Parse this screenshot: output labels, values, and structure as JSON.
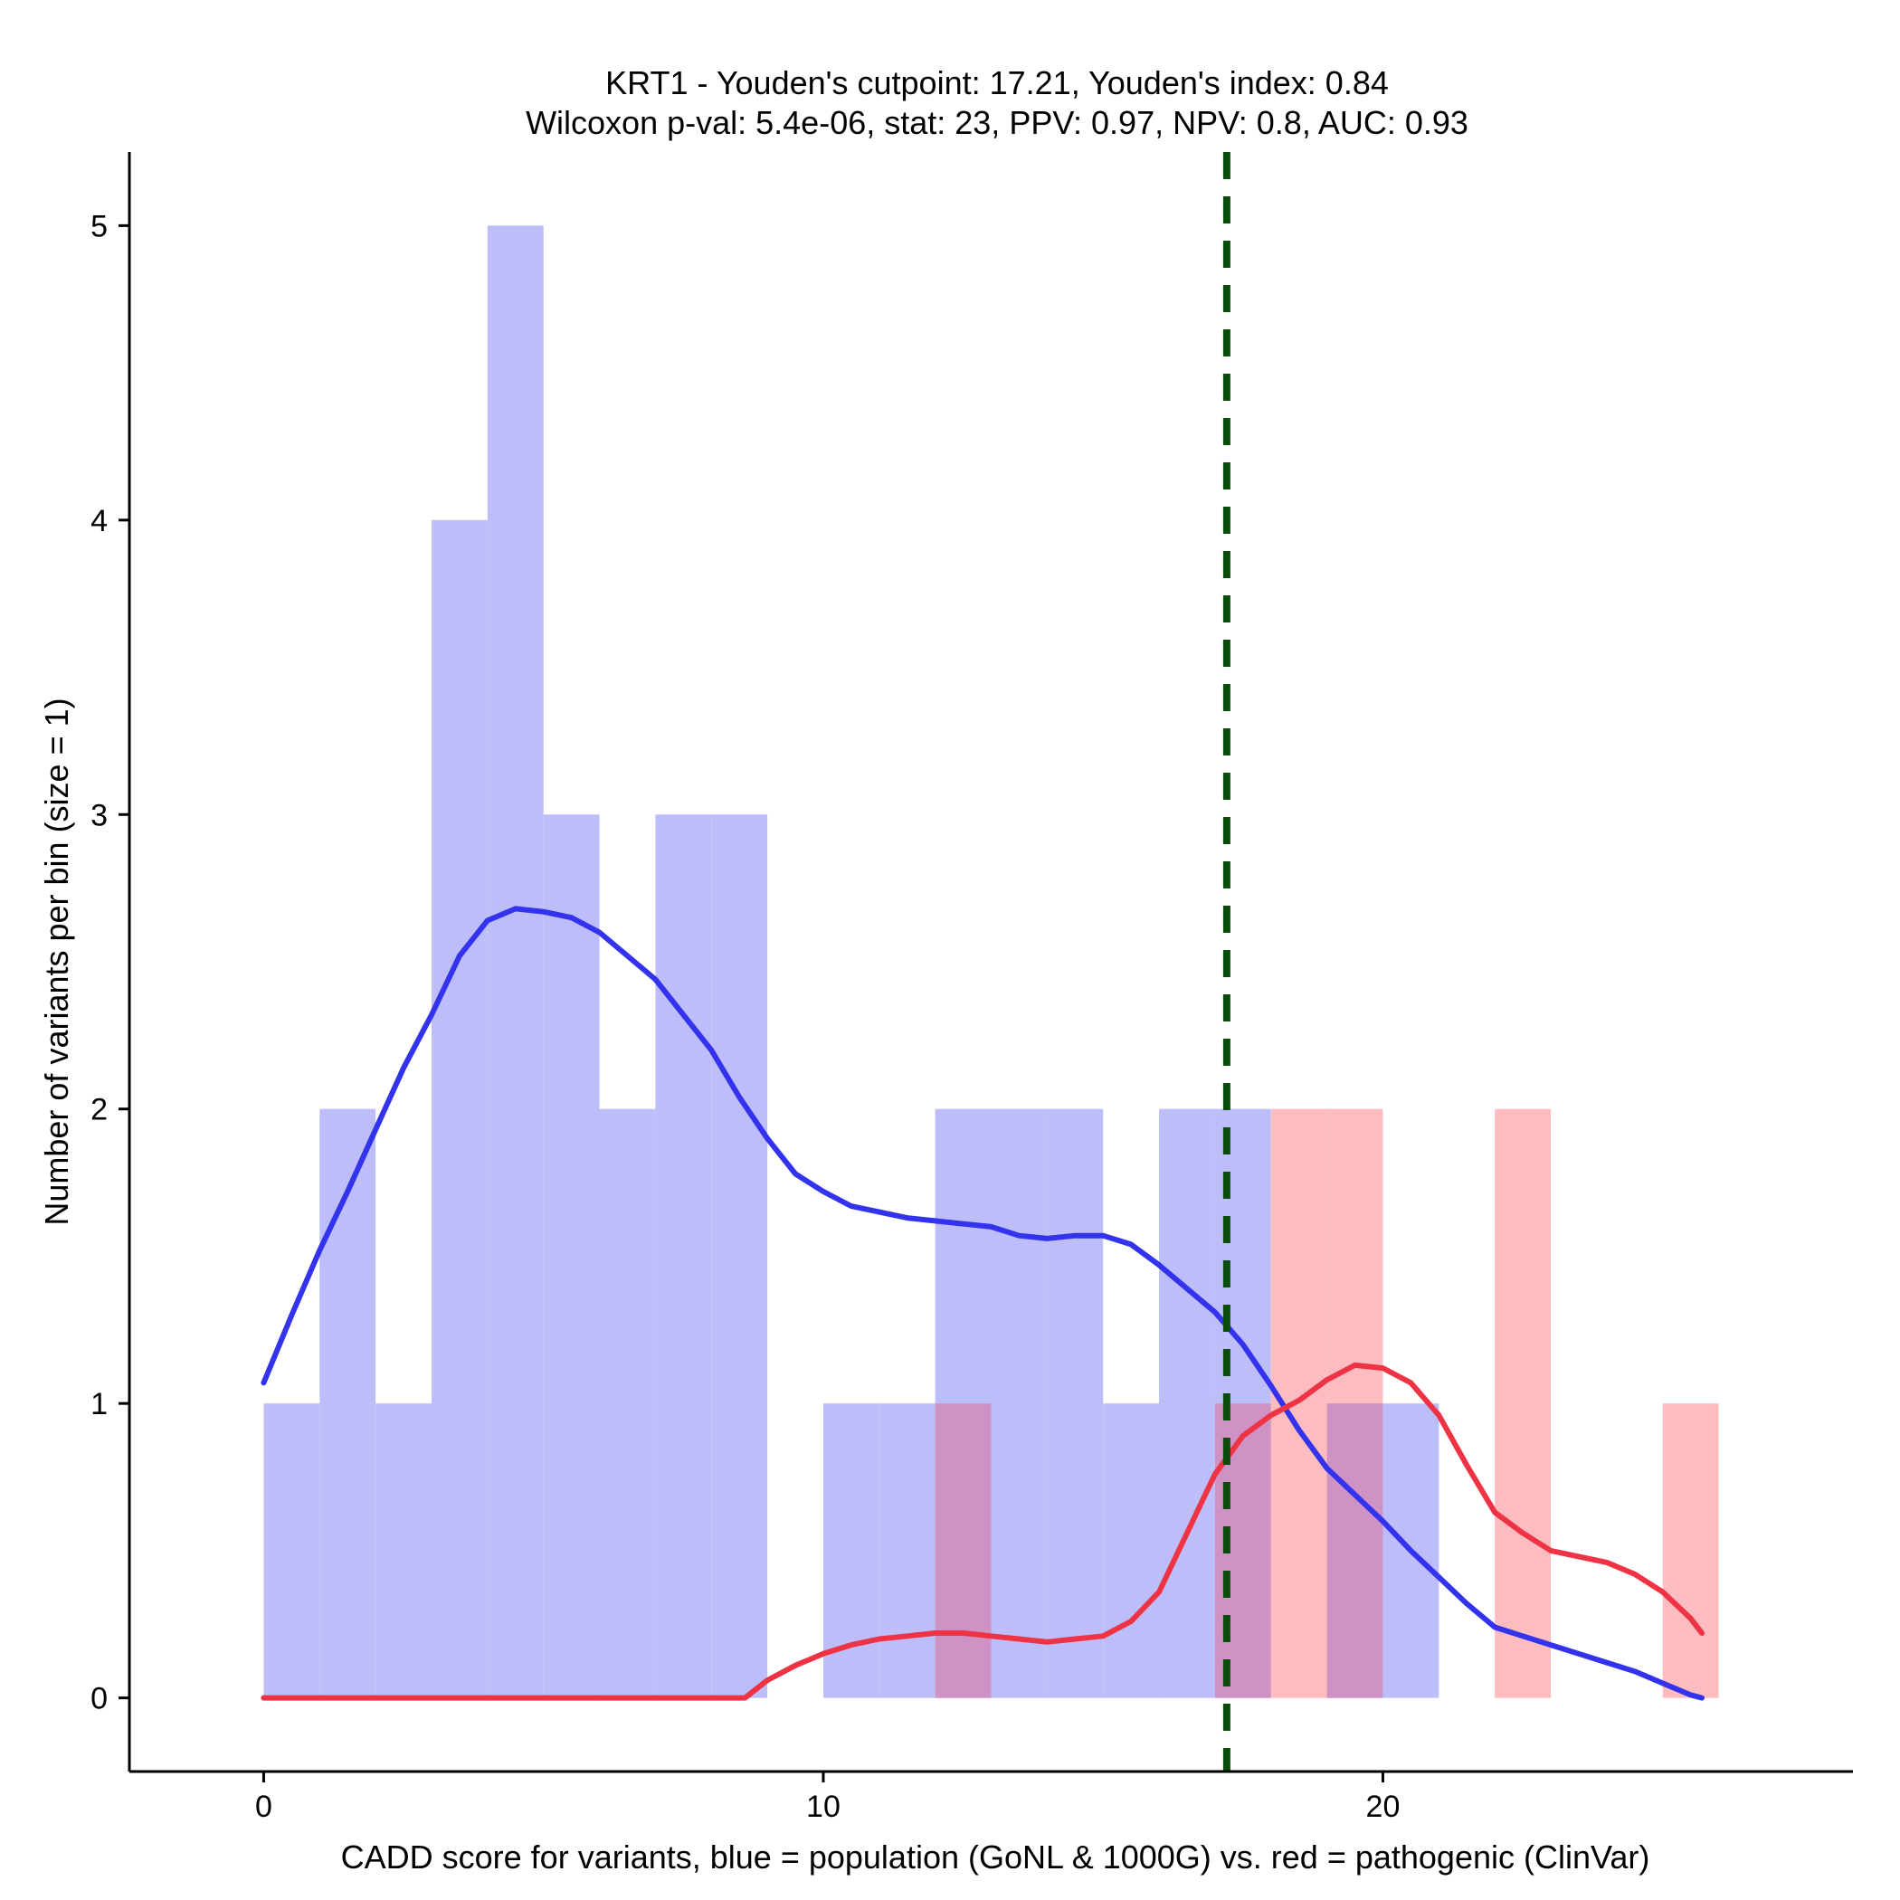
{
  "chart_data": {
    "type": "histogram",
    "title_line1": "KRT1 - Youden's cutpoint: 17.21, Youden's index: 0.84",
    "title_line2": "Wilcoxon p-val: 5.4e-06, stat: 23, PPV: 0.97, NPV: 0.8, AUC: 0.93",
    "xlabel": "CADD score for variants, blue = population (GoNL & 1000G) vs. red = pathogenic (ClinVar)",
    "ylabel": "Number of variants per bin (size = 1)",
    "xlim": [
      -2.4,
      28.4
    ],
    "ylim": [
      -0.25,
      5.25
    ],
    "x_ticks": [
      0,
      10,
      20
    ],
    "y_ticks": [
      0,
      1,
      2,
      3,
      4,
      5
    ],
    "x_tick_labels": [
      "0",
      "10",
      "20"
    ],
    "y_tick_labels": [
      "0",
      "1",
      "2",
      "3",
      "4",
      "5"
    ],
    "cutpoint": 17.21,
    "colors": {
      "population_bar": "#bdbdf9",
      "pathogenic_bar": "#fcbcc0",
      "overlap_bar": "#cf92c4",
      "population_line": "#3333ee",
      "pathogenic_line": "#ee3344",
      "cutpoint_line": "#0a4d0a"
    },
    "series": [
      {
        "name": "population (GoNL & 1000G)",
        "bin_starts": [
          0,
          1,
          2,
          3,
          4,
          5,
          6,
          7,
          8,
          9,
          10,
          11,
          12,
          13,
          14,
          15,
          16,
          17,
          18,
          19,
          20,
          21,
          22,
          23,
          24,
          25
        ],
        "counts": [
          1,
          2,
          1,
          4,
          5,
          3,
          2,
          3,
          3,
          0,
          1,
          1,
          2,
          2,
          2,
          1,
          2,
          2,
          0,
          1,
          1,
          0,
          0,
          0,
          0,
          0
        ]
      },
      {
        "name": "pathogenic (ClinVar)",
        "bin_starts": [
          0,
          1,
          2,
          3,
          4,
          5,
          6,
          7,
          8,
          9,
          10,
          11,
          12,
          13,
          14,
          15,
          16,
          17,
          18,
          19,
          20,
          21,
          22,
          23,
          24,
          25
        ],
        "counts": [
          0,
          0,
          0,
          0,
          0,
          0,
          0,
          0,
          0,
          0,
          0,
          0,
          1,
          0,
          0,
          0,
          0,
          1,
          2,
          2,
          0,
          0,
          2,
          0,
          0,
          1
        ]
      }
    ],
    "density_population": {
      "x": [
        0,
        0.5,
        1,
        1.5,
        2,
        2.5,
        3,
        3.5,
        4,
        4.5,
        5,
        5.5,
        6,
        6.5,
        7,
        7.5,
        8,
        8.5,
        9,
        9.5,
        10,
        10.5,
        11,
        11.5,
        12,
        12.5,
        13,
        13.5,
        14,
        14.5,
        15,
        15.5,
        16,
        16.5,
        17,
        17.5,
        18,
        18.5,
        19,
        19.5,
        20,
        20.5,
        21,
        21.5,
        22,
        22.5,
        23,
        23.5,
        24,
        24.5,
        25,
        25.5,
        25.7
      ],
      "y": [
        1.07,
        1.3,
        1.52,
        1.72,
        1.93,
        2.14,
        2.32,
        2.52,
        2.64,
        2.68,
        2.67,
        2.65,
        2.6,
        2.52,
        2.44,
        2.32,
        2.2,
        2.04,
        1.9,
        1.78,
        1.72,
        1.67,
        1.65,
        1.63,
        1.62,
        1.61,
        1.6,
        1.57,
        1.56,
        1.57,
        1.57,
        1.54,
        1.47,
        1.39,
        1.31,
        1.2,
        1.06,
        0.91,
        0.78,
        0.69,
        0.6,
        0.5,
        0.41,
        0.32,
        0.24,
        0.21,
        0.18,
        0.15,
        0.12,
        0.09,
        0.05,
        0.01,
        0.0
      ]
    },
    "density_pathogenic": {
      "x": [
        0,
        1,
        2,
        3,
        4,
        5,
        6,
        7,
        8,
        8.6,
        9,
        9.5,
        10,
        10.5,
        11,
        11.5,
        12,
        12.5,
        13,
        13.5,
        14,
        14.5,
        15,
        15.5,
        16,
        16.5,
        17,
        17.5,
        18,
        18.5,
        19,
        19.5,
        20,
        20.5,
        21,
        21.5,
        22,
        22.5,
        23,
        23.5,
        24,
        24.5,
        25,
        25.5,
        25.7
      ],
      "y": [
        0,
        0,
        0,
        0,
        0,
        0,
        0,
        0,
        0,
        0,
        0.06,
        0.11,
        0.15,
        0.18,
        0.2,
        0.21,
        0.22,
        0.22,
        0.21,
        0.2,
        0.19,
        0.2,
        0.21,
        0.26,
        0.36,
        0.56,
        0.76,
        0.89,
        0.96,
        1.01,
        1.08,
        1.13,
        1.12,
        1.07,
        0.96,
        0.79,
        0.63,
        0.56,
        0.5,
        0.48,
        0.46,
        0.42,
        0.36,
        0.27,
        0.22
      ]
    }
  }
}
